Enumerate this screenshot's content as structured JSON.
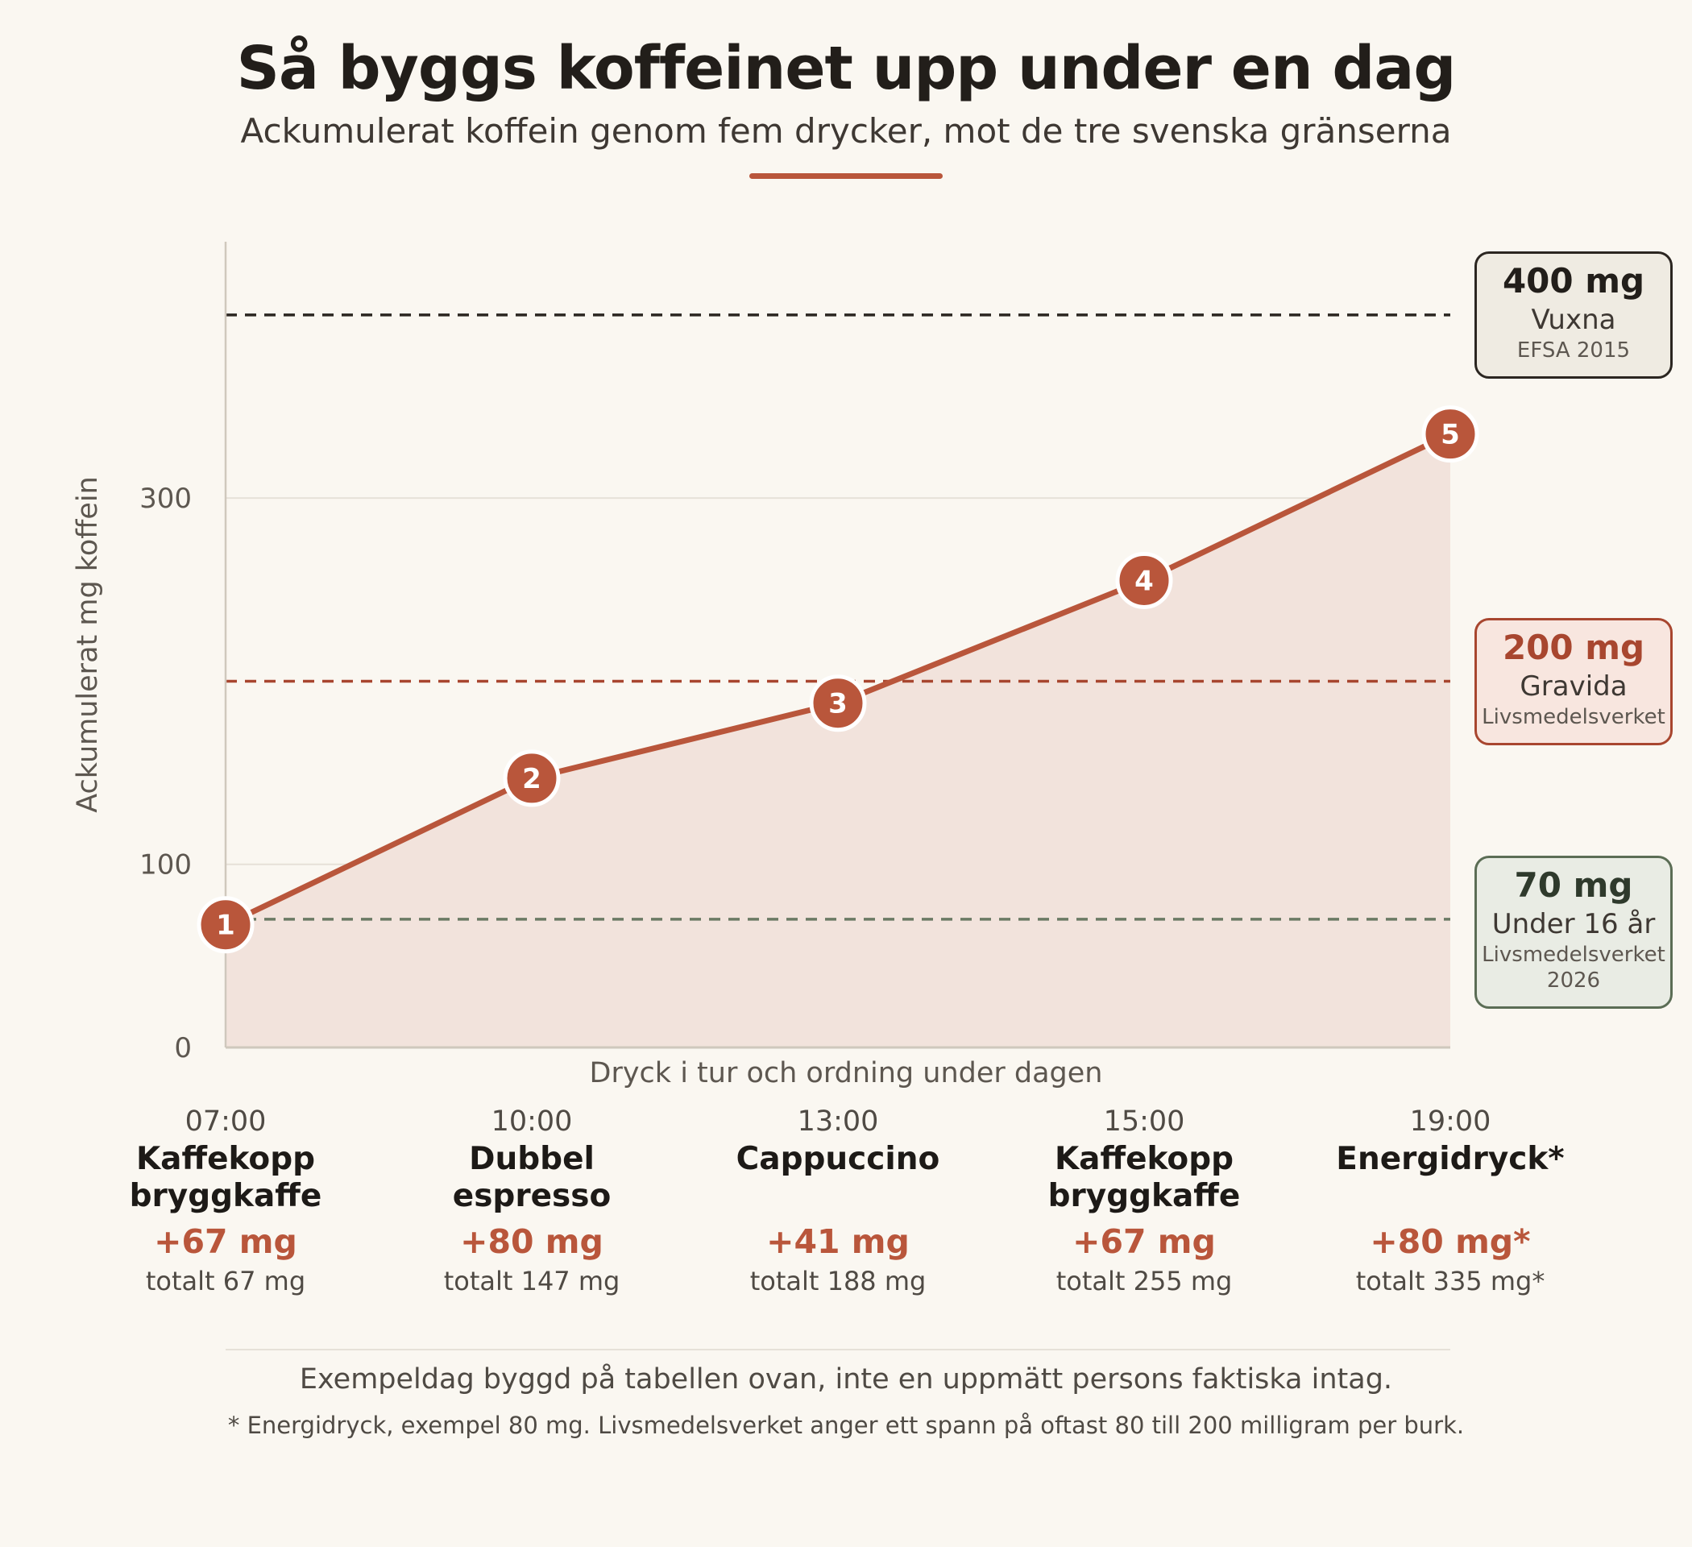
{
  "header": {
    "title": "Så byggs koffeinet upp under en dag",
    "subtitle": "Ackumulerat koffein genom fem drycker, mot de tre svenska gränserna"
  },
  "colors": {
    "line": "#b9563b",
    "area": "#f2e3dc",
    "adults_limit": "#2b2621",
    "pregnant_limit": "#a8462f",
    "youth_limit": "#6b7a64"
  },
  "limits": [
    {
      "value": 400,
      "amount": "400 mg",
      "group": "Vuxna",
      "source": "EFSA 2015"
    },
    {
      "value": 200,
      "amount": "200 mg",
      "group": "Gravida",
      "source": "Livsmedelsverket"
    },
    {
      "value": 70,
      "amount": "70 mg",
      "group": "Under 16 år",
      "source": "Livsmedelsverket 2026"
    }
  ],
  "drinks": [
    {
      "time": "07:00",
      "name": "Kaffekopp bryggkaffe",
      "added": "+67 mg",
      "total": "totalt 67 mg"
    },
    {
      "time": "10:00",
      "name": "Dubbel espresso",
      "added": "+80 mg",
      "total": "totalt 147 mg"
    },
    {
      "time": "13:00",
      "name": "Cappuccino",
      "added": "+41 mg",
      "total": "totalt 188 mg"
    },
    {
      "time": "15:00",
      "name": "Kaffekopp bryggkaffe",
      "added": "+67 mg",
      "total": "totalt 255 mg"
    },
    {
      "time": "19:00",
      "name": "Energidryck*",
      "added": "+80 mg*",
      "total": "totalt 335 mg*"
    }
  ],
  "chart_data": {
    "type": "area",
    "title": "Så byggs koffeinet upp under en dag",
    "subtitle": "Ackumulerat koffein genom fem drycker, mot de tre svenska gränserna",
    "xlabel": "Dryck i tur och ordning under dagen",
    "ylabel": "Ackumulerat mg koffein",
    "categories": [
      "1",
      "2",
      "3",
      "4",
      "5"
    ],
    "series": [
      {
        "values": [
          67,
          147,
          188,
          255,
          335
        ]
      }
    ],
    "yticks": [
      0,
      100,
      300
    ],
    "ylim": [
      0,
      440
    ],
    "reference_lines": [
      400,
      200,
      70
    ],
    "grid": true,
    "legend": "none"
  },
  "footer": {
    "note": "Exempeldag byggd på tabellen ovan, inte en uppmätt persons faktiska intag.",
    "footnote": "* Energidryck, exempel 80 mg. Livsmedelsverket anger ett spann på oftast 80 till 200 milligram per burk."
  }
}
